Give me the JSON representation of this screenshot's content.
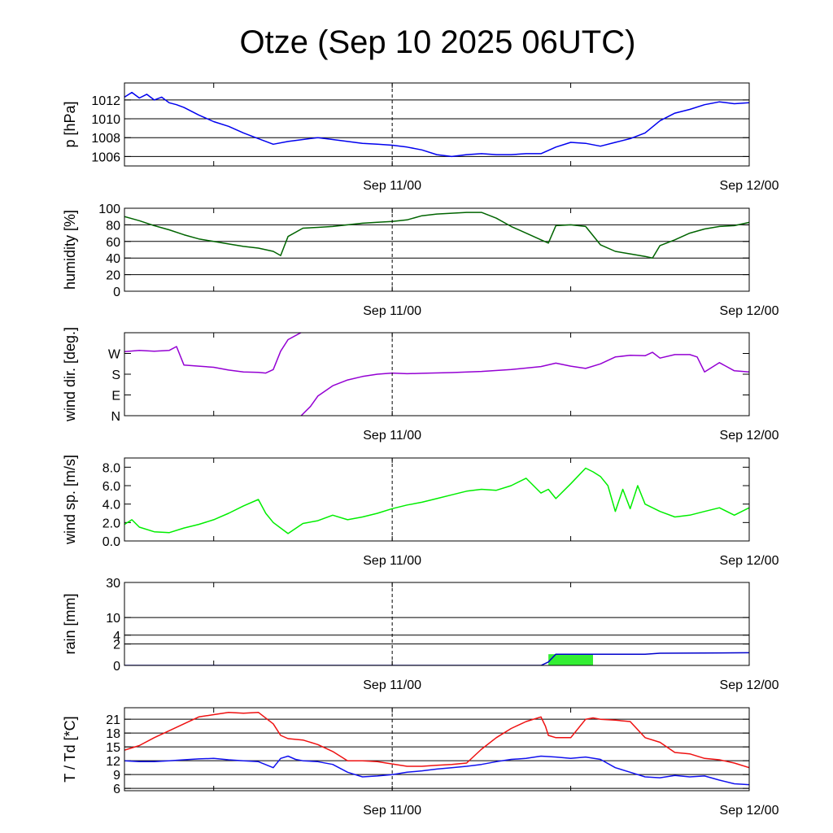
{
  "title": "Otze (Sep 10 2025 06UTC)",
  "chart_data": [
    {
      "type": "line",
      "ylabel": "p [hPa]",
      "x_ticks": [
        "Sep 11/00",
        "Sep 12/00"
      ],
      "yticks": [
        "1006",
        "1008",
        "1010",
        "1012"
      ],
      "ylim": [
        1005,
        1013.8
      ],
      "grid": true,
      "series": [
        {
          "color": "#0000ee",
          "x": [
            0,
            0.5,
            1,
            1.5,
            2,
            2.5,
            3,
            3.5,
            4,
            5,
            6,
            7,
            8,
            9,
            10,
            11,
            12,
            13,
            14,
            15,
            16,
            17,
            18,
            19,
            20,
            21,
            22,
            23,
            24,
            25,
            26,
            27,
            28,
            29,
            30,
            31,
            32,
            33,
            34,
            35,
            36,
            37,
            38,
            39,
            40,
            41,
            42
          ],
          "y": [
            1012.3,
            1012.8,
            1012.2,
            1012.6,
            1012.0,
            1012.3,
            1011.7,
            1011.5,
            1011.2,
            1010.4,
            1009.7,
            1009.2,
            1008.5,
            1007.9,
            1007.3,
            1007.6,
            1007.8,
            1008.0,
            1007.8,
            1007.6,
            1007.4,
            1007.3,
            1007.2,
            1007.0,
            1006.7,
            1006.2,
            1006.0,
            1006.2,
            1006.3,
            1006.2,
            1006.2,
            1006.3,
            1006.3,
            1007.0,
            1007.5,
            1007.4,
            1007.1,
            1007.5,
            1007.9,
            1008.5,
            1009.8,
            1010.6,
            1011.0,
            1011.5,
            1011.8,
            1011.6,
            1011.7
          ]
        }
      ]
    },
    {
      "type": "line",
      "ylabel": "humidity [%]",
      "x_ticks": [
        "Sep 11/00",
        "Sep 12/00"
      ],
      "yticks": [
        "0",
        "20",
        "40",
        "60",
        "80",
        "100"
      ],
      "ylim": [
        0,
        100
      ],
      "grid": true,
      "series": [
        {
          "color": "#006400",
          "x": [
            0,
            1,
            2,
            3,
            4,
            5,
            6,
            7,
            8,
            9,
            10,
            10.5,
            11,
            12,
            13,
            14,
            15,
            16,
            17,
            18,
            19,
            20,
            21,
            22,
            23,
            24,
            25,
            26,
            27,
            28,
            28.5,
            29,
            30,
            31,
            32,
            33,
            34,
            35,
            35.5,
            36,
            37,
            38,
            39,
            40,
            41,
            42
          ],
          "y": [
            90,
            85,
            79,
            74,
            68,
            63,
            60,
            57,
            54,
            52,
            48,
            43,
            66,
            76,
            77,
            78,
            80,
            82,
            83,
            84,
            86,
            91,
            93,
            94,
            95,
            95,
            88,
            78,
            70,
            62,
            58,
            79,
            80,
            78,
            56,
            48,
            45,
            42,
            40,
            55,
            62,
            70,
            75,
            78,
            79,
            83
          ]
        }
      ]
    },
    {
      "type": "line",
      "ylabel": "wind dir. [deg.]",
      "x_ticks": [
        "Sep 11/00",
        "Sep 12/00"
      ],
      "yticks": [
        "N",
        "E",
        "S",
        "W"
      ],
      "ylim": [
        0,
        360
      ],
      "grid": false,
      "series": [
        {
          "color": "#9400d3",
          "x": [
            0,
            1,
            2,
            3,
            3.5,
            4,
            5,
            6,
            7,
            8,
            9,
            9.5,
            10,
            10.5,
            11,
            12
          ],
          "y": [
            278,
            283,
            280,
            283,
            300,
            220,
            215,
            210,
            198,
            190,
            188,
            185,
            200,
            280,
            330,
            365
          ]
        },
        {
          "color": "#9400d3",
          "x": [
            11.8,
            12.5,
            13,
            14,
            15,
            16,
            17,
            18,
            19,
            20,
            22,
            24,
            26,
            28,
            29,
            30,
            31,
            32,
            33,
            34,
            35,
            35.5,
            36,
            37,
            38,
            38.5,
            39,
            40,
            41,
            42
          ],
          "y": [
            -5,
            40,
            85,
            130,
            155,
            170,
            180,
            185,
            182,
            184,
            187,
            192,
            200,
            213,
            228,
            215,
            205,
            225,
            255,
            262,
            260,
            275,
            250,
            265,
            265,
            255,
            190,
            230,
            195,
            190
          ]
        }
      ]
    },
    {
      "type": "line",
      "ylabel": "wind sp. [m/s]",
      "x_ticks": [
        "Sep 11/00",
        "Sep 12/00"
      ],
      "yticks": [
        "0.0",
        "2.0",
        "4.0",
        "6.0",
        "8.0"
      ],
      "ylim": [
        0,
        9
      ],
      "grid": false,
      "series": [
        {
          "color": "#00ee00",
          "x": [
            0,
            0.5,
            1,
            2,
            3,
            4,
            5,
            6,
            7,
            8,
            9,
            9.5,
            10,
            10.5,
            11,
            12,
            13,
            14,
            15,
            16,
            17,
            18,
            19,
            20,
            21,
            22,
            23,
            24,
            25,
            26,
            27,
            28,
            28.5,
            29,
            30,
            31,
            31.5,
            32,
            32.5,
            33,
            33.5,
            34,
            34.5,
            35,
            36,
            37,
            38,
            39,
            40,
            41,
            42
          ],
          "y": [
            1.8,
            2.3,
            1.5,
            1.0,
            0.9,
            1.4,
            1.8,
            2.3,
            3.0,
            3.8,
            4.5,
            3.0,
            2.0,
            1.4,
            0.8,
            1.9,
            2.2,
            2.8,
            2.3,
            2.6,
            3.0,
            3.5,
            3.9,
            4.2,
            4.6,
            5.0,
            5.4,
            5.6,
            5.5,
            6.0,
            6.8,
            5.2,
            5.6,
            4.6,
            6.2,
            7.9,
            7.5,
            7.0,
            6.0,
            3.2,
            5.6,
            3.5,
            6.0,
            4.0,
            3.2,
            2.6,
            2.8,
            3.2,
            3.6,
            2.8,
            3.6
          ]
        }
      ]
    },
    {
      "type": "area",
      "ylabel": "rain [mm]",
      "x_ticks": [
        "Sep 11/00",
        "Sep 12/00"
      ],
      "yticks": [
        "0",
        "2",
        "4",
        "10",
        "30"
      ],
      "ylim": [
        0,
        30
      ],
      "scale": "sqrt",
      "grid": true,
      "bars": {
        "color": "#33ee33",
        "x_start": 28.5,
        "x_end": 31.5,
        "value": 0.55
      },
      "series": [
        {
          "color": "#0000cc",
          "x": [
            0,
            28,
            28.5,
            29,
            35,
            36,
            42
          ],
          "y": [
            0,
            0,
            0.05,
            0.55,
            0.55,
            0.65,
            0.7
          ]
        }
      ]
    },
    {
      "type": "line",
      "ylabel": "T / Td [*C]",
      "x_ticks": [
        "Sep 11/00",
        "Sep 12/00"
      ],
      "yticks": [
        "6",
        "9",
        "12",
        "15",
        "18",
        "21"
      ],
      "ylim": [
        5.5,
        23.5
      ],
      "grid": true,
      "series": [
        {
          "color": "#ee1111",
          "x": [
            0,
            1,
            2,
            3,
            4,
            5,
            6,
            7,
            8,
            9,
            10,
            10.5,
            11,
            12,
            13,
            14,
            15,
            16,
            17,
            18,
            19,
            20,
            21,
            22,
            23,
            24,
            25,
            26,
            27,
            28,
            28.3,
            28.5,
            29,
            30,
            31,
            31.5,
            32,
            33,
            34,
            35,
            36,
            37,
            38,
            39,
            40,
            41,
            42
          ],
          "y": [
            14.3,
            15.3,
            17.0,
            18.5,
            20.0,
            21.5,
            22.0,
            22.5,
            22.3,
            22.5,
            20.0,
            17.5,
            16.8,
            16.5,
            15.5,
            14.0,
            12.0,
            12.0,
            11.8,
            11.3,
            10.8,
            10.8,
            11.0,
            11.2,
            11.5,
            14.5,
            17.0,
            19.0,
            20.5,
            21.5,
            19.5,
            17.5,
            17.0,
            17.0,
            21.0,
            21.3,
            21.0,
            20.8,
            20.5,
            17.0,
            16.0,
            13.8,
            13.5,
            12.5,
            12.2,
            11.5,
            10.5
          ]
        },
        {
          "color": "#1111ee",
          "x": [
            0,
            1,
            2,
            3,
            4,
            5,
            6,
            7,
            8,
            9,
            10,
            10.5,
            11,
            11.5,
            12,
            13,
            14,
            15,
            16,
            17,
            18,
            19,
            20,
            21,
            22,
            23,
            24,
            25,
            26,
            27,
            28,
            29,
            30,
            31,
            32,
            33,
            34,
            35,
            36,
            37,
            38,
            39,
            40,
            41,
            42
          ],
          "y": [
            12.0,
            11.8,
            11.8,
            12.0,
            12.2,
            12.4,
            12.5,
            12.2,
            12.0,
            11.8,
            10.5,
            12.5,
            13.0,
            12.3,
            12.0,
            11.8,
            11.2,
            9.5,
            8.5,
            8.7,
            9.0,
            9.5,
            9.8,
            10.2,
            10.5,
            10.8,
            11.2,
            11.8,
            12.3,
            12.5,
            13.0,
            12.8,
            12.5,
            12.8,
            12.3,
            10.5,
            9.5,
            8.5,
            8.3,
            8.8,
            8.5,
            8.7,
            7.8,
            7.0,
            6.8
          ]
        }
      ]
    }
  ]
}
